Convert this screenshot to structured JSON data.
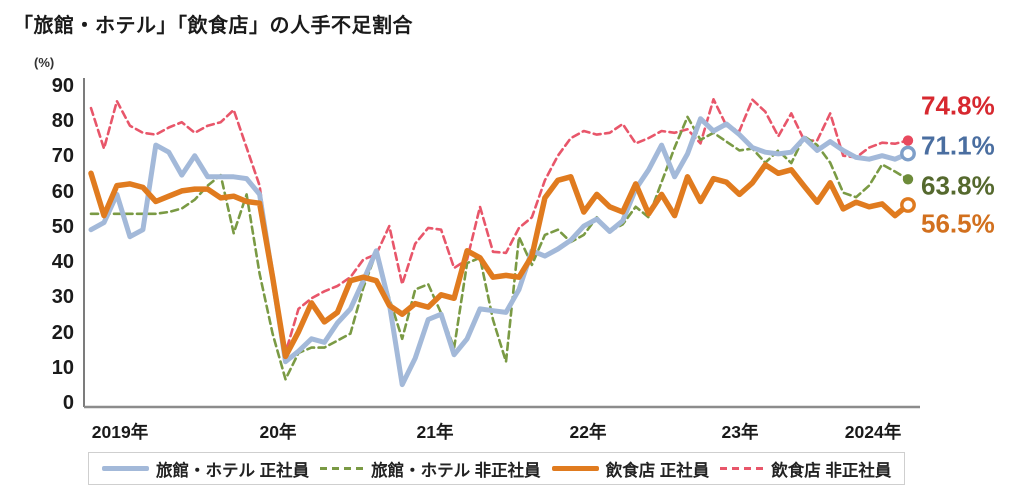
{
  "title": "「旅館・ホテル」「飲食店」の人手不足割合",
  "y_axis": {
    "unit_label": "(%)",
    "ticks": [
      "90",
      "80",
      "70",
      "60",
      "50",
      "40",
      "30",
      "20",
      "10",
      "0"
    ]
  },
  "x_axis": {
    "labels": [
      "2019年",
      "20年",
      "21年",
      "22年",
      "23年",
      "2024年"
    ]
  },
  "end_labels": [
    {
      "series": "restaurant-parttime",
      "text": "74.8%",
      "color": "#d7282f"
    },
    {
      "series": "hotel-fulltime",
      "text": "71.1%",
      "color": "#4a6ea0"
    },
    {
      "series": "hotel-parttime",
      "text": "63.8%",
      "color": "#55692e"
    },
    {
      "series": "restaurant-fulltime",
      "text": "56.5%",
      "color": "#d2701e"
    }
  ],
  "legend": [
    {
      "id": "hotel-fulltime",
      "label": "旅館・ホテル 正社員",
      "color": "#a3b9d9",
      "line": "solid"
    },
    {
      "id": "hotel-parttime",
      "label": "旅館・ホテル 非正社員",
      "color": "#7a9a44",
      "line": "dashed"
    },
    {
      "id": "restaurant-fulltime",
      "label": "飲食店 正社員",
      "color": "#e07b1f",
      "line": "solid"
    },
    {
      "id": "restaurant-parttime",
      "label": "飲食店 非正社員",
      "color": "#e8566a",
      "line": "dashed"
    }
  ],
  "chart_data": {
    "type": "line",
    "title": "「旅館・ホテル」「飲食店」の人手不足割合",
    "x_unit": "month",
    "x_start": "2019-01",
    "x_end": "2024-04",
    "ylabel": "(%)",
    "ylim": [
      0,
      90
    ],
    "y_tick_step": 10,
    "grid": false,
    "legend_position": "bottom",
    "series": [
      {
        "id": "restaurant-parttime",
        "name": "飲食店 非正社員",
        "color": "#e8566a",
        "line": "dashed",
        "width": 2.6,
        "end_marker": "dot",
        "marker_color": "#e8495e",
        "end_value": 74.8,
        "values": [
          84,
          72.5,
          86,
          79,
          77,
          76.5,
          78.5,
          80,
          77,
          79,
          80,
          83.5,
          72.8,
          62,
          35,
          14.5,
          27,
          30,
          32,
          33.5,
          36,
          41,
          42.5,
          50.5,
          34,
          45.5,
          50,
          49.5,
          38.6,
          41,
          56,
          43.2,
          42.9,
          50,
          53,
          63.5,
          70.5,
          75.5,
          77.5,
          76.5,
          77,
          79.5,
          74,
          75.5,
          77.5,
          77,
          78,
          74,
          86.5,
          79,
          77.5,
          86.4,
          83,
          76,
          82.5,
          74.8,
          74.8,
          82.5,
          70.5,
          70,
          72.8,
          74.2,
          73.9,
          74.8
        ]
      },
      {
        "id": "hotel-parttime",
        "name": "旅館・ホテル 非正社員",
        "color": "#7a9a44",
        "line": "dashed",
        "width": 2.6,
        "end_marker": "dot",
        "marker_color": "#6d8b3a",
        "end_value": 63.8,
        "values": [
          54,
          54,
          54,
          54,
          54,
          54,
          54.5,
          55.5,
          58,
          62,
          65,
          48.5,
          59.5,
          37,
          20,
          7,
          14.5,
          16,
          16,
          18,
          20,
          33,
          43,
          30,
          18.5,
          32.5,
          34,
          25.8,
          15.9,
          40,
          41.5,
          23.9,
          12,
          47.4,
          39.5,
          48,
          49.5,
          46,
          48,
          53,
          49,
          51,
          56,
          53,
          63,
          72.8,
          81.5,
          75,
          77,
          74.5,
          72,
          72.5,
          68.5,
          72,
          68.4,
          76,
          73.5,
          68.5,
          60,
          58.7,
          62,
          68,
          66,
          63.8
        ]
      },
      {
        "id": "hotel-fulltime",
        "name": "旅館・ホテル 正社員",
        "color": "#a3b9d9",
        "line": "solid",
        "width": 5,
        "end_marker": "ring",
        "marker_color": "#7e9fc9",
        "end_value": 71.1,
        "values": [
          49.5,
          51.5,
          59.5,
          47.5,
          49.5,
          73.5,
          71.5,
          65,
          70.5,
          64.5,
          64.5,
          64.5,
          64,
          59.5,
          36,
          12,
          15,
          18.5,
          17.5,
          23,
          27,
          35,
          43.5,
          28.5,
          5.5,
          13,
          24,
          25.5,
          14,
          18.5,
          27,
          26.5,
          26,
          32.5,
          43.5,
          42,
          44,
          46.5,
          50.5,
          52.5,
          49,
          52,
          61,
          66.5,
          73.5,
          64.5,
          71,
          81,
          77.5,
          79.5,
          76.5,
          72.8,
          71.5,
          71,
          71.5,
          75.5,
          72,
          74.5,
          72,
          70,
          69.5,
          70.5,
          69.5,
          71.1
        ]
      },
      {
        "id": "restaurant-fulltime",
        "name": "飲食店 正社員",
        "color": "#e07b1f",
        "line": "solid",
        "width": 5.5,
        "end_marker": "ring",
        "marker_color": "#df7a1f",
        "end_value": 56.5,
        "values": [
          65.5,
          53.5,
          62,
          62.5,
          61.5,
          57.5,
          59,
          60.5,
          61,
          61,
          58.5,
          59,
          57.5,
          57,
          36,
          13.5,
          20.5,
          28.7,
          23.3,
          26,
          35,
          36,
          35,
          28,
          25.5,
          28.5,
          27.5,
          31,
          30,
          43.5,
          41.5,
          36,
          36.5,
          36,
          42,
          58.5,
          63.5,
          64.5,
          54.5,
          59.5,
          56,
          54.5,
          62.5,
          54,
          59.5,
          53.5,
          64.5,
          57.5,
          64,
          63,
          59.5,
          62.8,
          67.9,
          65.5,
          66.5,
          61.8,
          57.3,
          62.8,
          55.4,
          57.3,
          56,
          56.8,
          53.5,
          56.5
        ]
      }
    ]
  }
}
